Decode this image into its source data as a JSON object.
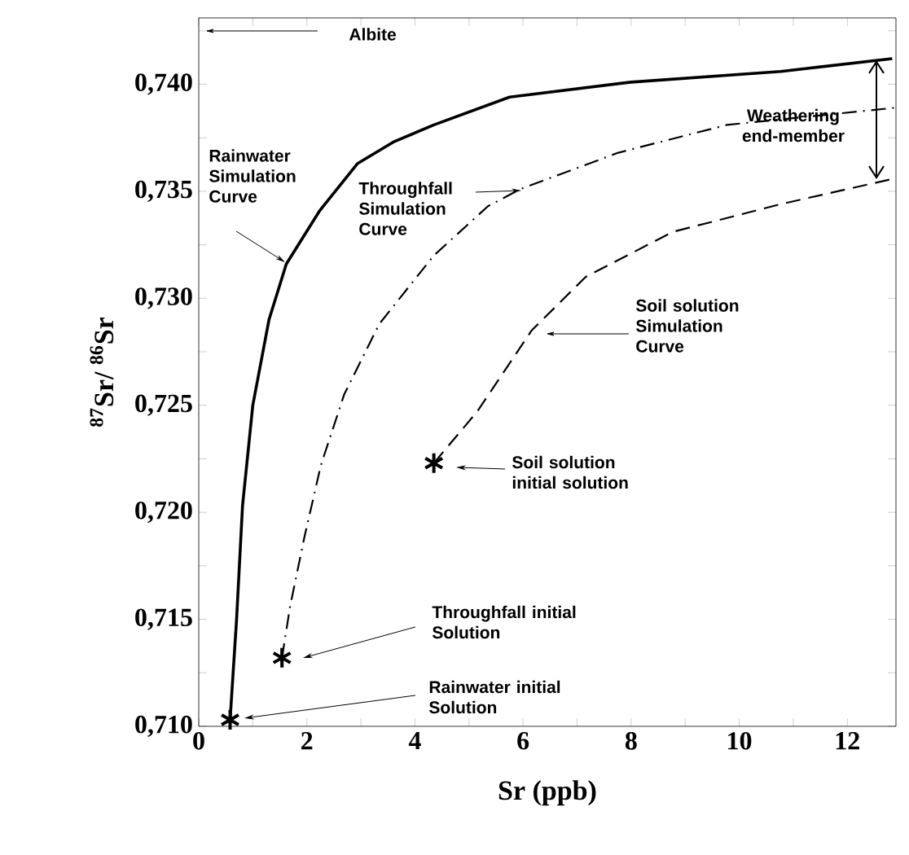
{
  "chart_data": {
    "type": "line",
    "xlabel": "Sr (ppb)",
    "ylabel": "$^{87}$Sr/ $^{86}$Sr",
    "xlim": [
      0,
      12.9
    ],
    "ylim": [
      0.71,
      0.7431
    ],
    "xticks": [
      0,
      {
        "value": 1,
        "label": null
      },
      2,
      {
        "value": 3,
        "label": null
      },
      4,
      {
        "value": 5,
        "label": null
      },
      6,
      {
        "value": 7,
        "label": null
      },
      8,
      {
        "value": 9,
        "label": null
      },
      10,
      {
        "value": 11,
        "label": null
      },
      12
    ],
    "yticks": [
      {
        "value": 0.71,
        "label": "0,710"
      },
      {
        "value": 0.7125,
        "label": null
      },
      {
        "value": 0.715,
        "label": "0,715"
      },
      {
        "value": 0.7175,
        "label": null
      },
      {
        "value": 0.72,
        "label": "0,720"
      },
      {
        "value": 0.7225,
        "label": null
      },
      {
        "value": 0.725,
        "label": "0,725"
      },
      {
        "value": 0.7275,
        "label": null
      },
      {
        "value": 0.73,
        "label": "0,730"
      },
      {
        "value": 0.7325,
        "label": null
      },
      {
        "value": 0.735,
        "label": "0,735"
      },
      {
        "value": 0.7375,
        "label": null
      },
      {
        "value": 0.74,
        "label": "0,740"
      },
      {
        "value": 0.7425,
        "label": null
      }
    ],
    "grid": false,
    "series": [
      {
        "color": "#000000",
        "line_style": "solid",
        "marker": "none",
        "x": [
          0.58,
          0.7,
          0.81,
          1.0,
          1.3,
          1.62,
          2.24,
          2.94,
          3.6,
          4.35,
          5.75,
          8.0,
          10.77,
          12.83
        ],
        "values": [
          0.7103,
          0.715,
          0.7203,
          0.725,
          0.729,
          0.7316,
          0.7341,
          0.7363,
          0.7373,
          0.7381,
          0.7394,
          0.7401,
          0.7406,
          0.7412
        ]
      },
      {
        "color": "#000000",
        "line_style": "dashdot",
        "marker": "none",
        "x": [
          1.54,
          1.69,
          1.96,
          2.26,
          2.69,
          3.34,
          4.35,
          5.35,
          5.95,
          7.76,
          9.77,
          12.88
        ],
        "values": [
          0.7132,
          0.7156,
          0.7189,
          0.7222,
          0.7255,
          0.7288,
          0.732,
          0.7343,
          0.7351,
          0.7368,
          0.7381,
          0.7389
        ]
      },
      {
        "color": "#000000",
        "line_style": "dashed",
        "marker": "none",
        "x": [
          4.35,
          5.15,
          6.16,
          7.16,
          8.77,
          10.77,
          12.88
        ],
        "values": [
          0.7223,
          0.7247,
          0.7285,
          0.731,
          0.7331,
          0.7344,
          0.7356
        ]
      },
      {
        "type": "scatter",
        "color": "#000000",
        "marker": "cross",
        "x": [
          0.58,
          1.54,
          4.35
        ],
        "values": [
          0.7103,
          0.7132,
          0.7223
        ]
      }
    ],
    "annotations": [
      "Albite",
      "Rainwater Simulation Curve",
      "Throughfall Simulation Curve",
      "Soil solution Simulation Curve",
      "Soil solution initial solution",
      "Throughfall initial Solution",
      "Rainwater initial Solution",
      "Weathering end-member"
    ]
  }
}
